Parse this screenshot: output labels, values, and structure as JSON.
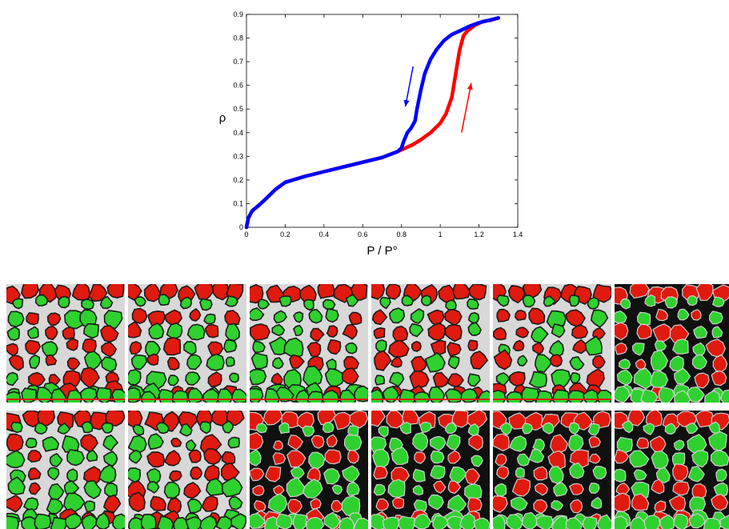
{
  "chart_data": {
    "type": "line",
    "title": "",
    "xlabel": "P / P°",
    "ylabel": "ρ",
    "xlim": [
      0,
      1.4
    ],
    "ylim": [
      0,
      0.9
    ],
    "x_ticks": [
      "0",
      "0.2",
      "0.4",
      "0.6",
      "0.8",
      "1",
      "1.2",
      "1.4"
    ],
    "y_ticks": [
      "0",
      "0.1",
      "0.2",
      "0.3",
      "0.4",
      "0.5",
      "0.6",
      "0.7",
      "0.8",
      "0.9"
    ],
    "grid": false,
    "legend": "none",
    "series": [
      {
        "color": "#ff0000",
        "direction": "adsorption (up)",
        "x": [
          0,
          0.01,
          0.03,
          0.06,
          0.1,
          0.15,
          0.2,
          0.3,
          0.4,
          0.5,
          0.6,
          0.7,
          0.78,
          0.82,
          0.86,
          0.9,
          0.95,
          1.0,
          1.03,
          1.06,
          1.08,
          1.1,
          1.12,
          1.14,
          1.18,
          1.22,
          1.26,
          1.3
        ],
        "y": [
          0,
          0.04,
          0.07,
          0.09,
          0.12,
          0.16,
          0.19,
          0.215,
          0.235,
          0.255,
          0.275,
          0.295,
          0.32,
          0.335,
          0.35,
          0.37,
          0.4,
          0.44,
          0.48,
          0.55,
          0.65,
          0.75,
          0.81,
          0.83,
          0.855,
          0.87,
          0.875,
          0.885
        ]
      },
      {
        "color": "#0000ff",
        "direction": "desorption (down)",
        "x": [
          0,
          0.01,
          0.03,
          0.06,
          0.1,
          0.15,
          0.2,
          0.3,
          0.4,
          0.5,
          0.6,
          0.7,
          0.78,
          0.8,
          0.81,
          0.83,
          0.85,
          0.87,
          0.88,
          0.9,
          0.92,
          0.95,
          0.98,
          1.02,
          1.06,
          1.1,
          1.15,
          1.2,
          1.25,
          1.3
        ],
        "y": [
          0,
          0.04,
          0.07,
          0.09,
          0.12,
          0.16,
          0.19,
          0.215,
          0.235,
          0.255,
          0.275,
          0.295,
          0.32,
          0.335,
          0.36,
          0.4,
          0.42,
          0.45,
          0.5,
          0.58,
          0.65,
          0.71,
          0.75,
          0.79,
          0.815,
          0.83,
          0.85,
          0.865,
          0.875,
          0.885
        ]
      }
    ],
    "arrows": [
      {
        "color": "#0000ff",
        "from": [
          0.86,
          0.68
        ],
        "to": [
          0.82,
          0.51
        ]
      },
      {
        "color": "#ff0000",
        "from": [
          1.11,
          0.4
        ],
        "to": [
          1.16,
          0.61
        ]
      }
    ]
  },
  "panels": {
    "rows": 2,
    "cols": 6,
    "colors": {
      "red": "#e01a0f",
      "green": "#2ed12e",
      "light_bg": "#d8d8d8",
      "dark_bg": "#101010",
      "outline": "#1a1a1a"
    },
    "backgrounds": [
      [
        "light",
        "light",
        "light",
        "light",
        "light",
        "dark"
      ],
      [
        "light",
        "light",
        "dark",
        "dark",
        "dark",
        "dark"
      ]
    ]
  }
}
